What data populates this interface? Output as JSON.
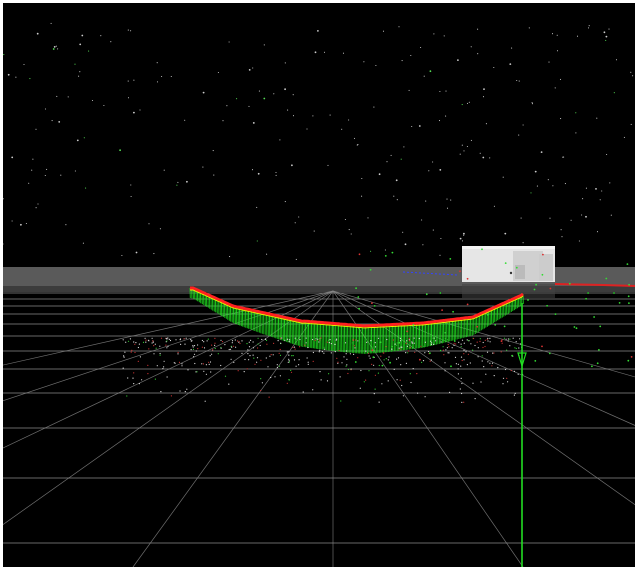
{
  "viewer": {
    "background_color": "#000000",
    "horizon_band_color": "#5a5a5a",
    "grid_color": "#8a8a8a",
    "path_colors": {
      "top_edge": "#ff2020",
      "highlight": "#f0f000",
      "vertical_lines": "#22ff22"
    },
    "axis_color": "#22dd22",
    "camera_image_panel_color": "#e6e6e6",
    "point_cloud_colors": [
      "#ffffff",
      "#dd3333",
      "#33dd33"
    ]
  }
}
